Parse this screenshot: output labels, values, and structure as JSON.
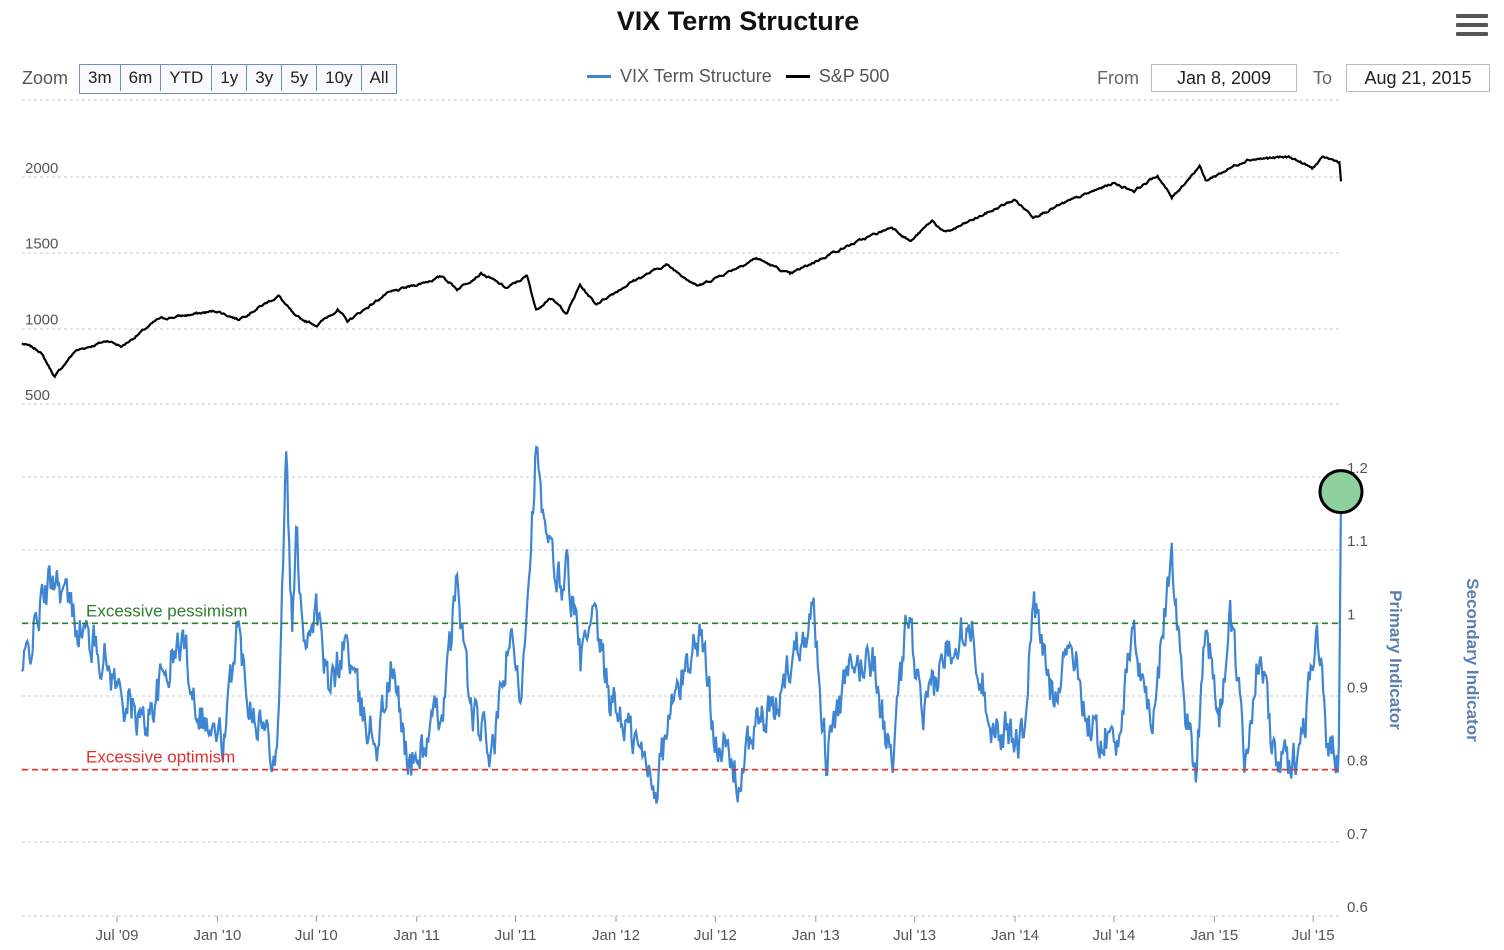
{
  "title": "VIX Term Structure",
  "menu_icon": "hamburger-menu-icon",
  "zoom": {
    "label": "Zoom",
    "buttons": [
      "3m",
      "6m",
      "YTD",
      "1y",
      "3y",
      "5y",
      "10y",
      "All"
    ]
  },
  "legend": [
    {
      "name": "VIX Term Structure",
      "color": "#3f86d2"
    },
    {
      "name": "S&P 500",
      "color": "#000000"
    }
  ],
  "range": {
    "from_label": "From",
    "from_value": "Jan 8, 2009",
    "to_label": "To",
    "to_value": "Aug 21, 2015"
  },
  "colors": {
    "vix_line": "#3f86d2",
    "sp500_line": "#000000",
    "pessimism_line": "#2e7d2e",
    "optimism_line": "#e03030",
    "highlight_fill": "#8fd19e",
    "axis_title": "#5a7fb0"
  },
  "chart_data": [
    {
      "type": "line",
      "name": "S&P 500 panel",
      "series": [
        {
          "name": "S&P 500"
        }
      ],
      "x_range": [
        "2009-01-08",
        "2015-08-21"
      ],
      "ylim": [
        500,
        2200
      ],
      "y_ticks": [
        "2000",
        "1500",
        "1000",
        "500"
      ],
      "keypoints": [
        [
          "2009-01-08",
          900
        ],
        [
          "2009-02-10",
          850
        ],
        [
          "2009-03-09",
          680
        ],
        [
          "2009-04-15",
          850
        ],
        [
          "2009-06-15",
          920
        ],
        [
          "2009-07-10",
          880
        ],
        [
          "2009-09-15",
          1060
        ],
        [
          "2009-12-31",
          1115
        ],
        [
          "2010-02-08",
          1060
        ],
        [
          "2010-04-23",
          1215
        ],
        [
          "2010-05-25",
          1070
        ],
        [
          "2010-07-02",
          1022
        ],
        [
          "2010-08-09",
          1125
        ],
        [
          "2010-08-27",
          1045
        ],
        [
          "2010-11-05",
          1225
        ],
        [
          "2011-02-18",
          1343
        ],
        [
          "2011-03-16",
          1260
        ],
        [
          "2011-04-29",
          1365
        ],
        [
          "2011-06-15",
          1265
        ],
        [
          "2011-07-22",
          1345
        ],
        [
          "2011-08-08",
          1120
        ],
        [
          "2011-09-01",
          1205
        ],
        [
          "2011-10-03",
          1100
        ],
        [
          "2011-10-27",
          1285
        ],
        [
          "2011-11-25",
          1160
        ],
        [
          "2012-01-31",
          1310
        ],
        [
          "2012-04-02",
          1420
        ],
        [
          "2012-06-01",
          1280
        ],
        [
          "2012-09-14",
          1465
        ],
        [
          "2012-11-15",
          1355
        ],
        [
          "2013-01-31",
          1500
        ],
        [
          "2013-05-21",
          1670
        ],
        [
          "2013-06-24",
          1575
        ],
        [
          "2013-08-02",
          1710
        ],
        [
          "2013-08-27",
          1630
        ],
        [
          "2013-12-31",
          1850
        ],
        [
          "2014-02-03",
          1740
        ],
        [
          "2014-06-30",
          1960
        ],
        [
          "2014-08-07",
          1910
        ],
        [
          "2014-09-19",
          2010
        ],
        [
          "2014-10-15",
          1862
        ],
        [
          "2014-12-05",
          2075
        ],
        [
          "2014-12-16",
          1975
        ],
        [
          "2015-03-02",
          2117
        ],
        [
          "2015-05-21",
          2131
        ],
        [
          "2015-06-29",
          2057
        ],
        [
          "2015-07-20",
          2128
        ],
        [
          "2015-08-18",
          2100
        ],
        [
          "2015-08-21",
          1971
        ]
      ]
    },
    {
      "type": "line",
      "name": "VIX Term Structure panel",
      "series": [
        {
          "name": "VIX Term Structure"
        }
      ],
      "x_range": [
        "2009-01-08",
        "2015-08-21"
      ],
      "ylim": [
        0.6,
        1.3
      ],
      "y_ticks": [
        "1.2",
        "1.1",
        "1",
        "0.9",
        "0.8",
        "0.7",
        "0.6"
      ],
      "y_axis_titles": [
        "Primary Indicator",
        "Secondary Indicator"
      ],
      "thresholds": [
        {
          "label": "Excessive pessimism",
          "value": 1.0
        },
        {
          "label": "Excessive optimism",
          "value": 0.8
        }
      ],
      "highlight_point": {
        "x": "2015-08-21",
        "y": 1.18
      },
      "keypoints": [
        [
          "2009-01-08",
          0.93
        ],
        [
          "2009-02-10",
          1.02
        ],
        [
          "2009-03-09",
          1.07
        ],
        [
          "2009-04-20",
          1.0
        ],
        [
          "2009-06-10",
          0.95
        ],
        [
          "2009-07-10",
          0.9
        ],
        [
          "2009-08-20",
          0.86
        ],
        [
          "2009-09-20",
          0.92
        ],
        [
          "2009-10-30",
          0.98
        ],
        [
          "2009-11-20",
          0.9
        ],
        [
          "2009-12-20",
          0.85
        ],
        [
          "2010-01-15",
          0.84
        ],
        [
          "2010-02-05",
          1.0
        ],
        [
          "2010-02-28",
          0.9
        ],
        [
          "2010-04-01",
          0.85
        ],
        [
          "2010-04-20",
          0.82
        ],
        [
          "2010-05-07",
          1.23
        ],
        [
          "2010-05-18",
          0.98
        ],
        [
          "2010-05-25",
          1.12
        ],
        [
          "2010-06-10",
          0.98
        ],
        [
          "2010-07-01",
          1.02
        ],
        [
          "2010-07-25",
          0.9
        ],
        [
          "2010-08-24",
          0.98
        ],
        [
          "2010-09-20",
          0.88
        ],
        [
          "2010-10-20",
          0.84
        ],
        [
          "2010-11-16",
          0.94
        ],
        [
          "2010-12-20",
          0.8
        ],
        [
          "2011-01-20",
          0.84
        ],
        [
          "2011-02-22",
          0.9
        ],
        [
          "2011-03-16",
          1.06
        ],
        [
          "2011-04-10",
          0.88
        ],
        [
          "2011-05-20",
          0.82
        ],
        [
          "2011-06-20",
          0.98
        ],
        [
          "2011-07-10",
          0.9
        ],
        [
          "2011-08-08",
          1.24
        ],
        [
          "2011-08-22",
          1.12
        ],
        [
          "2011-09-22",
          1.05
        ],
        [
          "2011-10-03",
          1.08
        ],
        [
          "2011-10-28",
          0.95
        ],
        [
          "2011-11-23",
          1.0
        ],
        [
          "2011-12-20",
          0.9
        ],
        [
          "2012-01-20",
          0.86
        ],
        [
          "2012-03-15",
          0.78
        ],
        [
          "2012-04-10",
          0.88
        ],
        [
          "2012-05-18",
          0.96
        ],
        [
          "2012-06-04",
          0.99
        ],
        [
          "2012-06-28",
          0.86
        ],
        [
          "2012-08-15",
          0.78
        ],
        [
          "2012-09-10",
          0.86
        ],
        [
          "2012-10-20",
          0.88
        ],
        [
          "2012-11-15",
          0.95
        ],
        [
          "2012-12-28",
          1.02
        ],
        [
          "2013-01-20",
          0.82
        ],
        [
          "2013-02-25",
          0.92
        ],
        [
          "2013-04-15",
          0.96
        ],
        [
          "2013-05-20",
          0.8
        ],
        [
          "2013-06-20",
          1.02
        ],
        [
          "2013-07-15",
          0.86
        ],
        [
          "2013-08-27",
          0.96
        ],
        [
          "2013-10-08",
          1.01
        ],
        [
          "2013-11-20",
          0.86
        ],
        [
          "2014-01-15",
          0.84
        ],
        [
          "2014-02-03",
          1.03
        ],
        [
          "2014-03-10",
          0.9
        ],
        [
          "2014-04-11",
          0.98
        ],
        [
          "2014-05-20",
          0.85
        ],
        [
          "2014-07-05",
          0.84
        ],
        [
          "2014-08-07",
          0.98
        ],
        [
          "2014-09-10",
          0.86
        ],
        [
          "2014-10-15",
          1.1
        ],
        [
          "2014-11-05",
          0.9
        ],
        [
          "2014-11-28",
          0.8
        ],
        [
          "2014-12-16",
          1.01
        ],
        [
          "2015-01-10",
          0.86
        ],
        [
          "2015-01-30",
          1.02
        ],
        [
          "2015-02-25",
          0.82
        ],
        [
          "2015-03-25",
          0.96
        ],
        [
          "2015-04-20",
          0.82
        ],
        [
          "2015-05-20",
          0.8
        ],
        [
          "2015-06-15",
          0.86
        ],
        [
          "2015-07-08",
          1.01
        ],
        [
          "2015-07-25",
          0.84
        ],
        [
          "2015-08-17",
          0.82
        ],
        [
          "2015-08-21",
          1.18
        ]
      ]
    }
  ],
  "x_ticks": [
    {
      "label": "Jul '09",
      "date": "2009-07-01"
    },
    {
      "label": "Jan '10",
      "date": "2010-01-01"
    },
    {
      "label": "Jul '10",
      "date": "2010-07-01"
    },
    {
      "label": "Jan '11",
      "date": "2011-01-01"
    },
    {
      "label": "Jul '11",
      "date": "2011-07-01"
    },
    {
      "label": "Jan '12",
      "date": "2012-01-01"
    },
    {
      "label": "Jul '12",
      "date": "2012-07-01"
    },
    {
      "label": "Jan '13",
      "date": "2013-01-01"
    },
    {
      "label": "Jul '13",
      "date": "2013-07-01"
    },
    {
      "label": "Jan '14",
      "date": "2014-01-01"
    },
    {
      "label": "Jul '14",
      "date": "2014-07-01"
    },
    {
      "label": "Jan '15",
      "date": "2015-01-01"
    },
    {
      "label": "Jul '15",
      "date": "2015-07-01"
    }
  ]
}
